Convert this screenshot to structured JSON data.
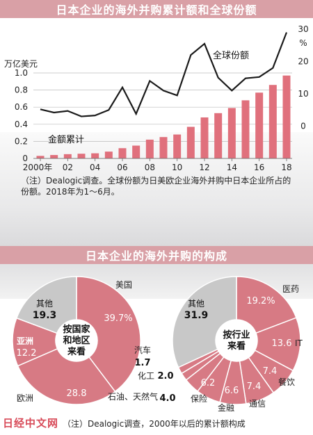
{
  "top_title": "日本企业的海外并购累计额和全球份额",
  "middle_title": "日本企业的海外并购的构成",
  "note_top": "（注）Dealogic调查。全球份额为日美欧企业海外并购中日本企业所占的份额。2018年为1～6月。",
  "note_bottom": "（注）Dealogic调查，2000年以后的累计额构成",
  "watermark": "日经中文网",
  "colors": {
    "bar": "#e0707c",
    "line": "#1a1a1a",
    "pie_main": "#d77a84",
    "pie_other": "#c8c8c8",
    "banner": "#d9a0a6"
  },
  "chart_data": [
    {
      "type": "bar+line",
      "title": "日本企业的海外并购累计额和全球份额",
      "x": [
        2000,
        2001,
        2002,
        2003,
        2004,
        2005,
        2006,
        2007,
        2008,
        2009,
        2010,
        2011,
        2012,
        2013,
        2014,
        2015,
        2016,
        2017,
        2018
      ],
      "x_tick_labels": [
        "2000年",
        "02",
        "04",
        "06",
        "08",
        "10",
        "12",
        "14",
        "16",
        "18"
      ],
      "x_tick_values": [
        2000,
        2002,
        2004,
        2006,
        2008,
        2010,
        2012,
        2014,
        2016,
        2018
      ],
      "series": [
        {
          "name": "金额累计",
          "kind": "bar",
          "axis": "left",
          "values": [
            0.03,
            0.04,
            0.05,
            0.055,
            0.06,
            0.08,
            0.12,
            0.15,
            0.22,
            0.25,
            0.28,
            0.37,
            0.48,
            0.53,
            0.59,
            0.68,
            0.77,
            0.86,
            0.97
          ]
        },
        {
          "name": "全球份额",
          "kind": "line",
          "axis": "right",
          "values": [
            5.2,
            4.2,
            4.7,
            3.0,
            3.3,
            5.0,
            12.0,
            3.8,
            14.0,
            11.0,
            9.5,
            22.0,
            25.5,
            15.0,
            11.0,
            14.8,
            15.2,
            18.0,
            29.0
          ]
        }
      ],
      "y_left": {
        "label": "万亿美元",
        "min": 0,
        "max": 1.0,
        "ticks": [
          "0",
          "0.2",
          "0.4",
          "0.6",
          "0.8",
          "1.0"
        ]
      },
      "y_right": {
        "label": "%",
        "min": -10,
        "max": 30,
        "ticks": [
          "0",
          "10",
          "20",
          "30"
        ]
      }
    },
    {
      "type": "pie",
      "center_label": "按国家和地区来看",
      "slices": [
        {
          "label": "美国",
          "value": 39.7,
          "value_text": "39.7%"
        },
        {
          "label": "欧洲",
          "value": 28.8,
          "value_text": "28.8"
        },
        {
          "label": "亚洲",
          "value": 12.2,
          "value_text": "12.2"
        },
        {
          "label": "其他",
          "value": 19.3,
          "value_text": "19.3"
        }
      ]
    },
    {
      "type": "pie",
      "center_label": "按行业来看",
      "slices": [
        {
          "label": "医药",
          "value": 19.2,
          "value_text": "19.2%"
        },
        {
          "label": "IT",
          "value": 13.6,
          "value_text": "13.6"
        },
        {
          "label": "餐饮",
          "value": 7.4,
          "value_text": "7.4"
        },
        {
          "label": "通信",
          "value": 7.4,
          "value_text": "7.4"
        },
        {
          "label": "金融",
          "value": 6.6,
          "value_text": "6.6"
        },
        {
          "label": "保险",
          "value": 6.2,
          "value_text": "6.2"
        },
        {
          "label": "石油、天然气",
          "value": 4.0,
          "value_text": "4.0"
        },
        {
          "label": "化工",
          "value": 2.0,
          "value_text": "2.0"
        },
        {
          "label": "汽车",
          "value": 1.7,
          "value_text": "1.7"
        },
        {
          "label": "其他",
          "value": 31.9,
          "value_text": "31.9"
        }
      ]
    }
  ]
}
